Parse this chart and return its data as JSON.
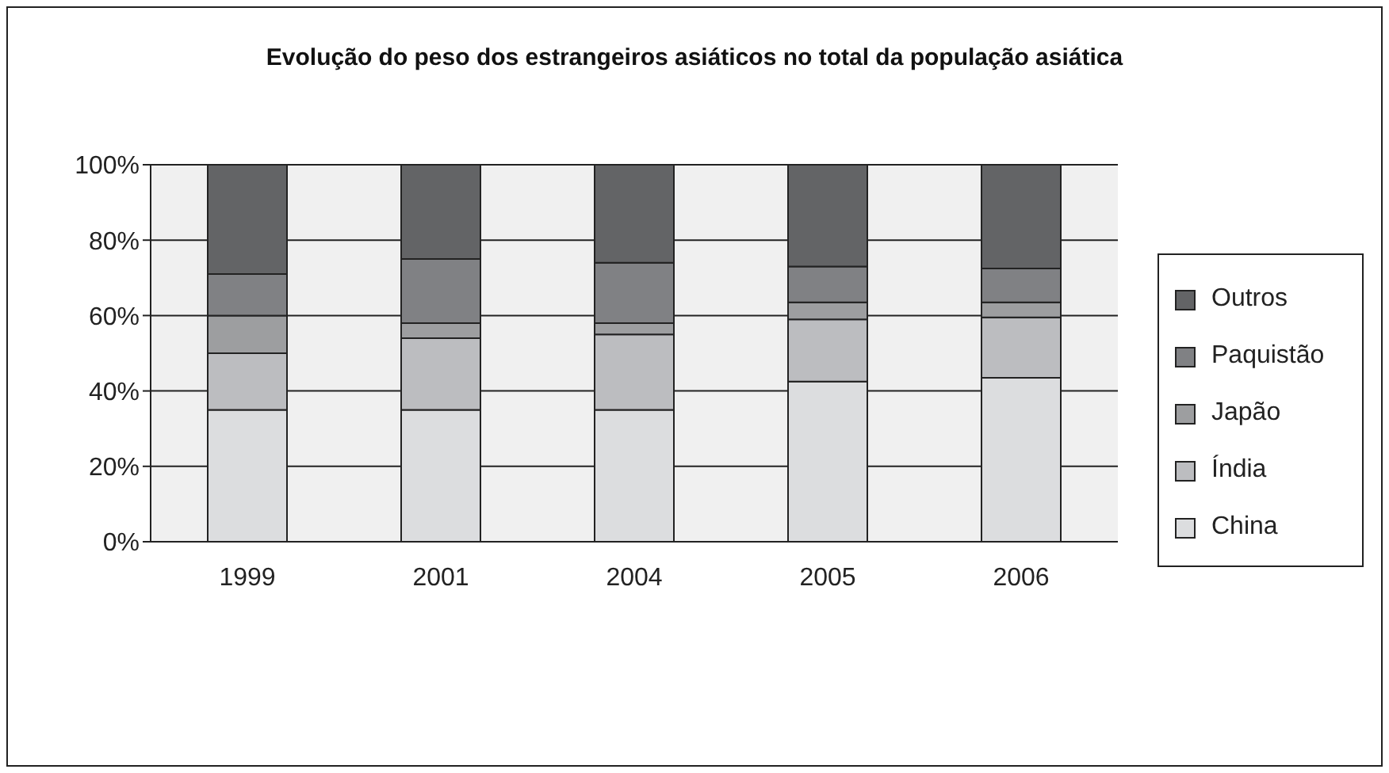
{
  "chart_data": {
    "type": "bar",
    "title": "Evolução do peso dos estrangeiros asiáticos no total da população asiática",
    "categories": [
      "1999",
      "2001",
      "2004",
      "2005",
      "2006"
    ],
    "stacked": true,
    "series": [
      {
        "name": "China",
        "color": "#dcdddf",
        "values": [
          35,
          35,
          35,
          42.5,
          43.5
        ]
      },
      {
        "name": "Índia",
        "color": "#bcbdc0",
        "values": [
          15,
          19,
          20,
          16.5,
          16
        ]
      },
      {
        "name": "Japão",
        "color": "#9d9ea0",
        "values": [
          10,
          4,
          3,
          4.5,
          4
        ]
      },
      {
        "name": "Paquistão",
        "color": "#808184",
        "values": [
          11,
          17,
          16,
          9.5,
          9
        ]
      },
      {
        "name": "Outros",
        "color": "#636466",
        "values": [
          29,
          25,
          26,
          27,
          27.5
        ]
      }
    ],
    "ylim": [
      0,
      100
    ],
    "yticks": [
      {
        "value": 0,
        "label": "0%"
      },
      {
        "value": 20,
        "label": "20%"
      },
      {
        "value": 40,
        "label": "40%"
      },
      {
        "value": 60,
        "label": "60%"
      },
      {
        "value": 80,
        "label": "80%"
      },
      {
        "value": 100,
        "label": "100%"
      }
    ],
    "grid": "y",
    "legend": "right"
  }
}
